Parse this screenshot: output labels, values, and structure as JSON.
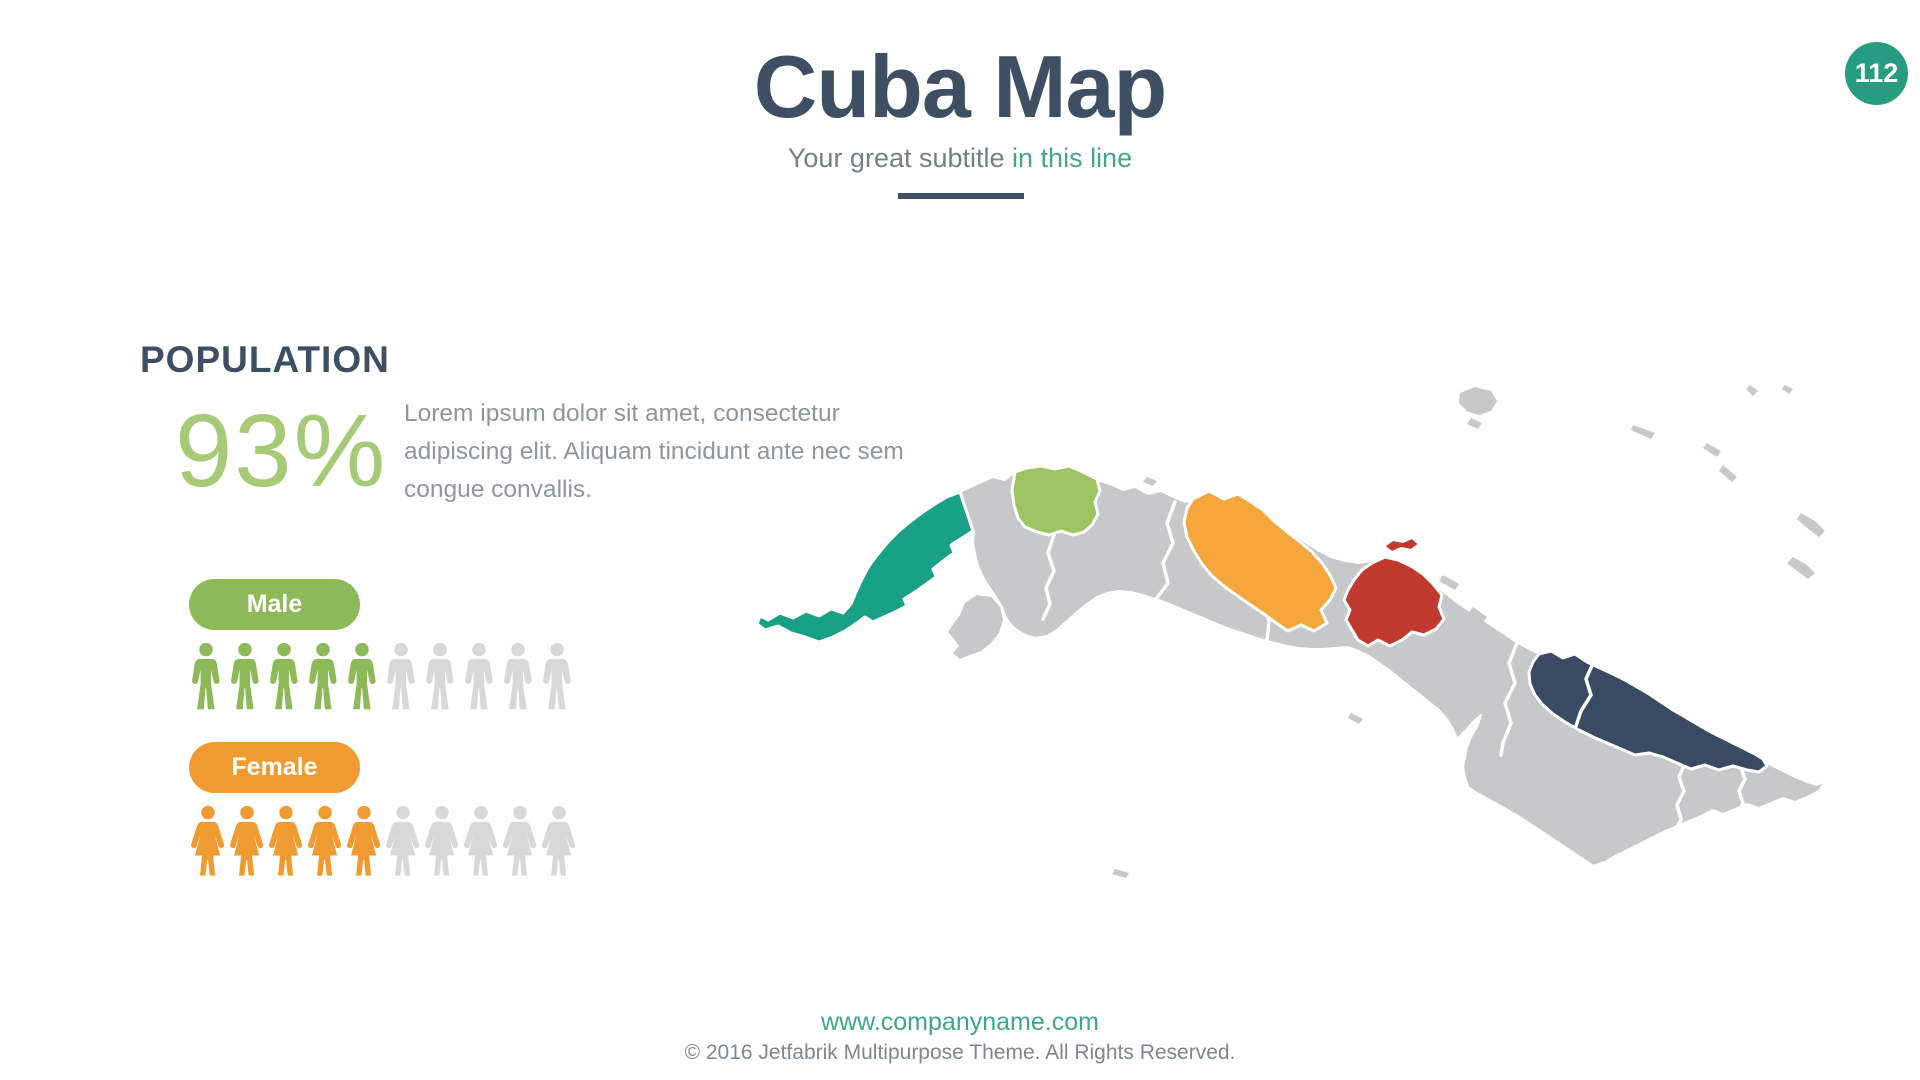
{
  "slide": {
    "title": "Cuba Map",
    "subtitle": {
      "main": "Your great subtitle ",
      "accent": "in this line"
    },
    "page_badge": "112",
    "badge_color": "#269c81"
  },
  "population": {
    "heading": "POPULATION",
    "percent": "93%",
    "description": "Lorem ipsum dolor sit amet, consectetur adipiscing elit. Aliquam tincidunt ante nec sem congue convallis.",
    "groups": [
      {
        "label": "Male",
        "filled": 5,
        "total": 10,
        "color": "#8eb958"
      },
      {
        "label": "Female",
        "filled": 5,
        "total": 10,
        "color": "#f09b31"
      }
    ]
  },
  "footer": {
    "website": "www.companyname.com",
    "copyright": "© 2016 Jetfabrik Multipurpose Theme. All Rights Reserved."
  },
  "map": {
    "country": "Cuba",
    "colors": {
      "gray": "#c7c8c9",
      "teal": "#18a186",
      "green": "#9cc462",
      "orange": "#f5a73d",
      "red": "#c2392f",
      "navy": "#394b62",
      "border": "#ffffff"
    },
    "regions": [
      {
        "id": "west-teal-province",
        "color": "#18a186"
      },
      {
        "id": "north-green-province",
        "color": "#9cc462"
      },
      {
        "id": "central-orange-province",
        "color": "#f5a73d"
      },
      {
        "id": "central-red-province",
        "color": "#c2392f"
      },
      {
        "id": "east-navy-provinces",
        "color": "#394b62"
      },
      {
        "id": "mainland-gray",
        "color": "#c7c8c9"
      },
      {
        "id": "southern-island-gray",
        "color": "#c7c8c9"
      }
    ]
  },
  "colors": {
    "heading_dark": "#3e4f63",
    "subtitle_gray": "#72808d",
    "subtitle_accent": "#45a48c",
    "percent_green": "#a6ca77",
    "body_gray": "#8d96a0",
    "icon_gray": "#d8d8d8",
    "footer_link": "#3fa58c",
    "footer_text": "#7e8790"
  }
}
